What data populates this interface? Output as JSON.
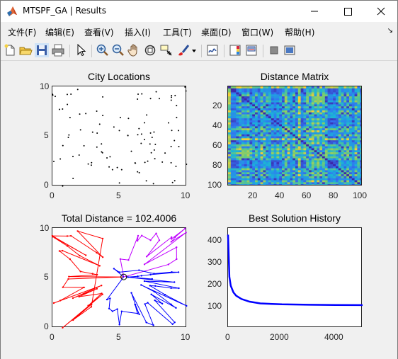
{
  "window": {
    "title": "MTSPF_GA | Results",
    "controls": [
      "minimize",
      "maximize",
      "close"
    ]
  },
  "menu": {
    "items": [
      "文件(F)",
      "编辑(E)",
      "查看(V)",
      "插入(I)",
      "工具(T)",
      "桌面(D)",
      "窗口(W)",
      "帮助(H)"
    ],
    "overflow_arrow": "↘"
  },
  "toolbar": {
    "icons": [
      "new-figure-icon",
      "open-file-icon",
      "save-icon",
      "print-icon",
      "pointer-icon",
      "zoom-in-icon",
      "zoom-out-icon",
      "pan-icon",
      "rotate-3d-icon",
      "data-cursor-icon",
      "brush-icon",
      "dropdown-arrow-icon",
      "link-plot-icon",
      "insert-colorbar-icon",
      "insert-legend-icon",
      "hide-plot-tools-icon",
      "show-plot-tools-icon"
    ]
  },
  "plots": {
    "city": {
      "title": "City Locations",
      "xticks": [
        "0",
        "5",
        "10"
      ],
      "yticks": [
        "10",
        "5",
        "0"
      ]
    },
    "matrix": {
      "title": "Distance Matrix",
      "xticks": [
        "20",
        "40",
        "60",
        "80",
        "100"
      ],
      "yticks": [
        "20",
        "40",
        "60",
        "80",
        "100"
      ]
    },
    "routes": {
      "title": "Total Distance = 102.4006",
      "xticks": [
        "0",
        "5",
        "10"
      ],
      "yticks": [
        "10",
        "5",
        "0"
      ],
      "colors": [
        "#ff0000",
        "#bf00ff",
        "#0000ff"
      ]
    },
    "history": {
      "title": "Best Solution History",
      "xticks": [
        "0",
        "2000",
        "4000"
      ],
      "yticks": [
        "400",
        "300",
        "200",
        "100"
      ],
      "color": "#0000ff"
    }
  },
  "chart_data": [
    {
      "type": "scatter",
      "title": "City Locations",
      "xlim": [
        0,
        10
      ],
      "ylim": [
        0,
        10
      ],
      "note_points": "100 random city points"
    },
    {
      "type": "heatmap",
      "title": "Distance Matrix",
      "xlim": [
        1,
        100
      ],
      "ylim": [
        1,
        100
      ]
    },
    {
      "type": "line",
      "title": "Total Distance = 102.4006",
      "xlim": [
        0,
        10
      ],
      "ylim": [
        0,
        10
      ],
      "series": [
        {
          "values": "red route"
        },
        {
          "values": "magenta route"
        },
        {
          "values": "blue route"
        }
      ]
    },
    {
      "type": "line",
      "title": "Best Solution History",
      "xlim": [
        0,
        5000
      ],
      "ylim": [
        0,
        450
      ],
      "x": [
        0,
        50,
        100,
        200,
        300,
        500,
        800,
        1200,
        2000,
        3000,
        4000,
        5000
      ],
      "y": [
        420,
        230,
        190,
        160,
        145,
        130,
        118,
        110,
        106,
        104,
        103,
        102.4
      ]
    }
  ]
}
